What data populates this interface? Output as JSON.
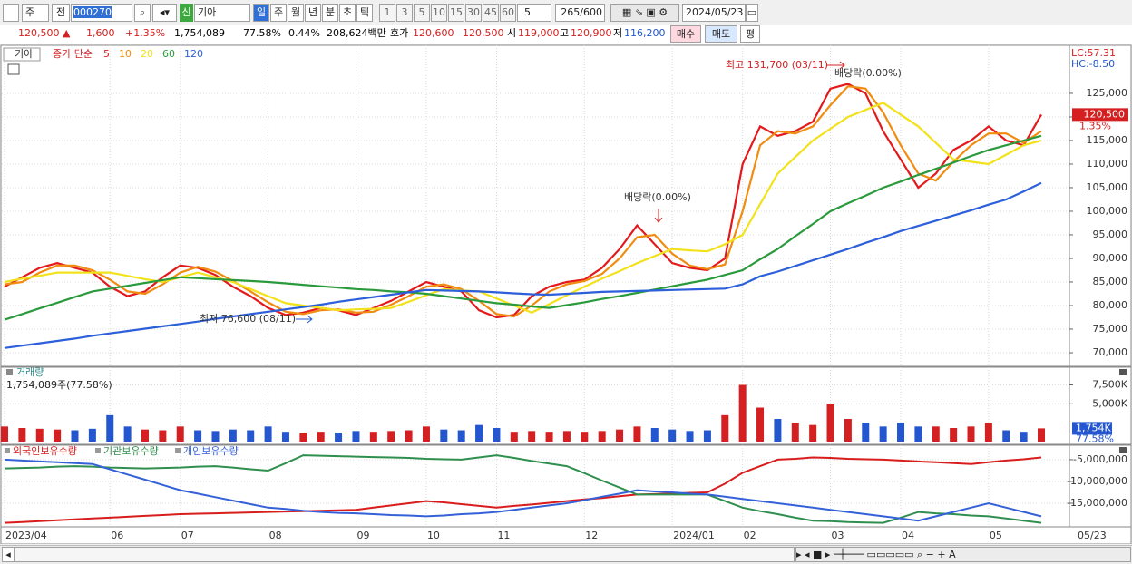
{
  "toolbar": {
    "market": "주",
    "prev": "전",
    "code": "000270",
    "badge": "신",
    "name": "기아",
    "periods": [
      "일",
      "주",
      "월",
      "년",
      "분",
      "초",
      "틱"
    ],
    "minutes": [
      "1",
      "3",
      "5",
      "10",
      "15",
      "30",
      "45",
      "60"
    ],
    "unit": "5",
    "count": "265",
    "max": "/600",
    "date": "2024/05/23"
  },
  "quote": {
    "price": "120,500 ▲",
    "change": "1,600",
    "rate": "+1.35%",
    "volume": "1,754,089",
    "vol_rate": "77.58%",
    "turnover_rate": "0.44%",
    "amount": "208,624백만",
    "ask_label": "호가",
    "ask": "120,600",
    "bid": "120,500",
    "open_label": "시",
    "open": "119,000",
    "high_label": "고",
    "high": "120,900",
    "low_label": "저",
    "low": "116,200",
    "buttons": [
      "매수",
      "매도",
      "평"
    ]
  },
  "chart_data": [
    {
      "type": "line",
      "title": "기아",
      "legend_label": "종가 단순",
      "ylim": [
        67500,
        134800
      ],
      "yticks": [
        {
          "value": 70000,
          "label": "70,000"
        },
        {
          "value": 75000,
          "label": "75,000"
        },
        {
          "value": 80000,
          "label": "80,000"
        },
        {
          "value": 85000,
          "label": "85,000"
        },
        {
          "value": 90000,
          "label": "90,000"
        },
        {
          "value": 95000,
          "label": "95,000"
        },
        {
          "value": 100000,
          "label": "100,000"
        },
        {
          "value": 105000,
          "label": "105,000"
        },
        {
          "value": 110000,
          "label": "110,000"
        },
        {
          "value": 115000,
          "label": "115,000"
        },
        {
          "value": 120000,
          "label": "120,000"
        },
        {
          "value": 125000,
          "label": "125,000"
        }
      ],
      "grid": true,
      "series": [
        {
          "name": "5",
          "color": "#e3191c",
          "values": [
            84000,
            86000,
            88000,
            89000,
            88000,
            87000,
            84000,
            82000,
            83000,
            86000,
            88500,
            88000,
            86500,
            84000,
            82000,
            79500,
            78000,
            78500,
            79500,
            79000,
            78000,
            79500,
            81000,
            83000,
            85000,
            84000,
            83000,
            79000,
            77500,
            78000,
            82000,
            84000,
            85000,
            85500,
            88000,
            92000,
            97000,
            93000,
            89000,
            88000,
            87500,
            90000,
            110000,
            118000,
            116000,
            117000,
            119000,
            126000,
            127000,
            125000,
            117000,
            111000,
            105000,
            108000,
            113000,
            115000,
            118000,
            115000,
            114000,
            120500
          ]
        },
        {
          "name": "10",
          "color": "#f08c10",
          "values": [
            84500,
            85000,
            87000,
            88500,
            88500,
            87500,
            85500,
            83000,
            82500,
            84500,
            87000,
            88200,
            87200,
            85200,
            83000,
            80700,
            78700,
            78200,
            79000,
            79200,
            78500,
            78700,
            80200,
            82000,
            84000,
            84500,
            83500,
            81000,
            78200,
            77700,
            80000,
            83000,
            84500,
            85200,
            86700,
            90000,
            94500,
            95000,
            91000,
            88500,
            87700,
            88700,
            100000,
            114000,
            117000,
            116500,
            118000,
            122500,
            126500,
            126000,
            121000,
            114000,
            108000,
            106500,
            110500,
            114000,
            116500,
            116500,
            114500,
            117000
          ]
        },
        {
          "name": "20",
          "color": "#f2e21b",
          "values": [
            85000,
            85700,
            86300,
            87000,
            87000,
            87000,
            87000,
            86300,
            85600,
            85000,
            86000,
            87000,
            86000,
            85000,
            83500,
            82000,
            80500,
            80000,
            79500,
            79000,
            79200,
            79300,
            79500,
            80800,
            82200,
            83500,
            83200,
            83000,
            81500,
            80000,
            78500,
            80300,
            82200,
            84000,
            85700,
            87300,
            89000,
            90500,
            92000,
            91700,
            91500,
            93000,
            95000,
            101500,
            108000,
            111500,
            115000,
            117500,
            120000,
            121500,
            123000,
            120500,
            118000,
            114500,
            111000,
            110500,
            110000,
            112000,
            114000,
            115000
          ]
        },
        {
          "name": "60",
          "color": "#2a9a3c",
          "values": [
            77000,
            78200,
            79400,
            80600,
            81800,
            83000,
            83600,
            84200,
            84800,
            85400,
            86000,
            85800,
            85600,
            85400,
            85200,
            85000,
            84700,
            84400,
            84100,
            83800,
            83500,
            83300,
            83000,
            82800,
            82500,
            82000,
            81500,
            81000,
            80500,
            80200,
            79800,
            79500,
            80100,
            80700,
            81400,
            82000,
            82700,
            83400,
            84100,
            84800,
            85500,
            86500,
            87500,
            89800,
            92000,
            94700,
            97300,
            100000,
            101700,
            103300,
            105000,
            106300,
            107700,
            109000,
            110300,
            111700,
            113000,
            114000,
            115000,
            116000
          ]
        },
        {
          "name": "120",
          "color": "#2c5fd9",
          "values": [
            71000,
            71500,
            72000,
            72500,
            73000,
            73600,
            74100,
            74600,
            75100,
            75600,
            76100,
            76600,
            77200,
            77700,
            78200,
            78700,
            79200,
            79700,
            80200,
            80800,
            81300,
            81800,
            82300,
            82800,
            83300,
            83200,
            83100,
            83000,
            82800,
            82600,
            82400,
            82300,
            82500,
            82700,
            82900,
            83000,
            83100,
            83200,
            83300,
            83400,
            83500,
            83600,
            84500,
            86200,
            87200,
            88400,
            89600,
            90800,
            92000,
            93300,
            94500,
            95800,
            96900,
            98000,
            99100,
            100200,
            101400,
            102500,
            104200,
            106000
          ]
        }
      ],
      "annotations": [
        "최고 131,700 (03/11)",
        "배당락(0.00%)",
        "배당락(0.00%)",
        "최저 76,600 (08/11)"
      ],
      "lc": "LC:57.31",
      "hc": "HC:-8.50",
      "last_label": "120,500",
      "last_rate": "1.35%"
    },
    {
      "type": "bar",
      "title": "거래량",
      "subtitle": "1,754,089주(77.58%)",
      "ylim": [
        0,
        9600
      ],
      "yticks": [
        {
          "value": 5000,
          "label": "5,000K"
        },
        {
          "value": 7500,
          "label": "7,500K"
        }
      ],
      "grid": true,
      "up_color": "#d42020",
      "down_color": "#2456d0",
      "values": [
        2000,
        1800,
        1700,
        1600,
        1500,
        1700,
        3500,
        2000,
        1600,
        1500,
        2000,
        1500,
        1400,
        1600,
        1500,
        2000,
        1300,
        1200,
        1300,
        1200,
        1400,
        1300,
        1400,
        1500,
        2000,
        1600,
        1500,
        2200,
        1800,
        1300,
        1400,
        1300,
        1400,
        1300,
        1400,
        1600,
        2000,
        1800,
        1600,
        1400,
        1500,
        3500,
        7500,
        4500,
        3000,
        2500,
        2200,
        5000,
        3000,
        2500,
        2000,
        2500,
        2000,
        2000,
        1800,
        2000,
        2500,
        1500,
        1300,
        1754
      ],
      "last_label": "1,754K",
      "last_rate": "77.58%"
    },
    {
      "type": "line",
      "ylim": [
        -20200000,
        -2100000
      ],
      "yticks": [
        {
          "value": -5000000,
          "label": "-5,000,000"
        },
        {
          "value": -10000000,
          "label": "-10,000,000"
        },
        {
          "value": -15000000,
          "label": "-15,000,000"
        }
      ],
      "grid": true,
      "categories": [
        "2023/04",
        null,
        null,
        null,
        null,
        null,
        "06",
        null,
        null,
        null,
        "07",
        null,
        null,
        null,
        null,
        "08",
        null,
        null,
        null,
        null,
        "09",
        null,
        null,
        null,
        "10",
        null,
        null,
        null,
        "11",
        null,
        null,
        null,
        null,
        "12",
        null,
        null,
        null,
        null,
        "2024/01",
        null,
        null,
        null,
        "02",
        null,
        null,
        null,
        null,
        "03",
        null,
        null,
        null,
        "04",
        null,
        null,
        null,
        null,
        "05",
        null,
        null,
        null
      ],
      "end_label": "05/23",
      "series": [
        {
          "name": "외국인보유수량",
          "color": "#d91c1c",
          "values": [
            -19500000,
            -19300000,
            -19100000,
            -18900000,
            -18700000,
            -18500000,
            -18300000,
            -18100000,
            -17900000,
            -17700000,
            -17500000,
            -17400000,
            -17300000,
            -17200000,
            -17100000,
            -17000000,
            -16900000,
            -16800000,
            -16700000,
            -16600000,
            -16500000,
            -16000000,
            -15500000,
            -15000000,
            -14500000,
            -14800000,
            -15200000,
            -15600000,
            -16000000,
            -15600000,
            -15300000,
            -14900000,
            -14500000,
            -14100000,
            -13800000,
            -13400000,
            -13000000,
            -12900000,
            -12800000,
            -12600000,
            -12500000,
            -10500000,
            -8000000,
            -6500000,
            -5000000,
            -4800000,
            -4500000,
            -4600000,
            -4800000,
            -4900000,
            -5000000,
            -5200000,
            -5400000,
            -5600000,
            -5800000,
            -6000000,
            -5600000,
            -5200000,
            -4900000,
            -4500000
          ]
        },
        {
          "name": "기관보유수량",
          "color": "#2f8f4e",
          "values": [
            -7000000,
            -6900000,
            -6800000,
            -6600000,
            -6500000,
            -6600000,
            -6800000,
            -6900000,
            -7000000,
            -6900000,
            -6800000,
            -6600000,
            -6500000,
            -6800000,
            -7200000,
            -7500000,
            -5800000,
            -4000000,
            -4100000,
            -4200000,
            -4300000,
            -4400000,
            -4500000,
            -4600000,
            -4800000,
            -4900000,
            -5000000,
            -4500000,
            -4000000,
            -4600000,
            -5300000,
            -5900000,
            -6500000,
            -8100000,
            -9800000,
            -11400000,
            -13000000,
            -13000000,
            -13000000,
            -13000000,
            -13000000,
            -14500000,
            -16000000,
            -16800000,
            -17500000,
            -18300000,
            -19000000,
            -19100000,
            -19300000,
            -19400000,
            -19500000,
            -18300000,
            -17000000,
            -17300000,
            -17500000,
            -17800000,
            -18000000,
            -18500000,
            -19000000,
            -19500000
          ]
        },
        {
          "name": "개인보유수량",
          "color": "#3461d8",
          "values": [
            -5000000,
            -5200000,
            -5400000,
            -5600000,
            -5800000,
            -6000000,
            -7200000,
            -8400000,
            -9600000,
            -10800000,
            -12000000,
            -12800000,
            -13600000,
            -14400000,
            -15200000,
            -16000000,
            -16300000,
            -16700000,
            -17000000,
            -17200000,
            -17300000,
            -17500000,
            -17700000,
            -17800000,
            -18000000,
            -17800000,
            -17500000,
            -17300000,
            -17000000,
            -16500000,
            -16000000,
            -15500000,
            -15000000,
            -14300000,
            -13500000,
            -12800000,
            -12000000,
            -12300000,
            -12500000,
            -12800000,
            -13000000,
            -13500000,
            -14000000,
            -14500000,
            -15000000,
            -15500000,
            -16000000,
            -16500000,
            -17000000,
            -17500000,
            -18000000,
            -18500000,
            -19000000,
            -18000000,
            -17000000,
            -16000000,
            -15000000,
            -16000000,
            -17000000,
            -18000000
          ]
        }
      ]
    }
  ]
}
